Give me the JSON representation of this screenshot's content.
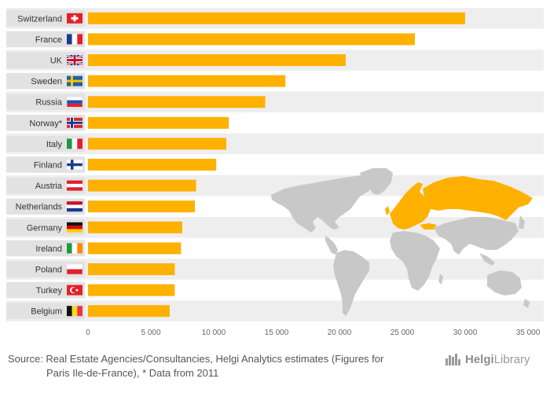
{
  "chart_data": {
    "type": "bar",
    "orientation": "horizontal",
    "categories": [
      "Switzerland",
      "France",
      "UK",
      "Sweden",
      "Russia",
      "Norway*",
      "Italy",
      "Finland",
      "Austria",
      "Netherlands",
      "Germany",
      "Ireland",
      "Poland",
      "Turkey",
      "Belgium"
    ],
    "values": [
      30000,
      26000,
      20500,
      15700,
      14100,
      11200,
      11000,
      10200,
      8600,
      8500,
      7500,
      7400,
      6900,
      6900,
      6500
    ],
    "xlim": [
      0,
      35000
    ],
    "xticks": [
      "0",
      "5 000",
      "10 000",
      "15 000",
      "20 000",
      "25 000",
      "30 000",
      "35 000"
    ],
    "bar_color": "#ffb100",
    "stripe_color": "#eeeeee",
    "flags": [
      "switzerland-flag",
      "france-flag",
      "uk-flag",
      "sweden-flag",
      "russia-flag",
      "norway-flag",
      "italy-flag",
      "finland-flag",
      "austria-flag",
      "netherlands-flag",
      "germany-flag",
      "ireland-flag",
      "poland-flag",
      "turkey-flag",
      "belgium-flag"
    ]
  },
  "footer": {
    "source_line1": "Source: Real Estate Agencies/Consultancies, Helgi Analytics estimates (Figures for",
    "source_line2": "Paris Ile-de-France), * Data from 2011",
    "logo_part1": "Helgi",
    "logo_part2": "Library",
    "logo_icon": "helgilibrary-logo-icon"
  }
}
